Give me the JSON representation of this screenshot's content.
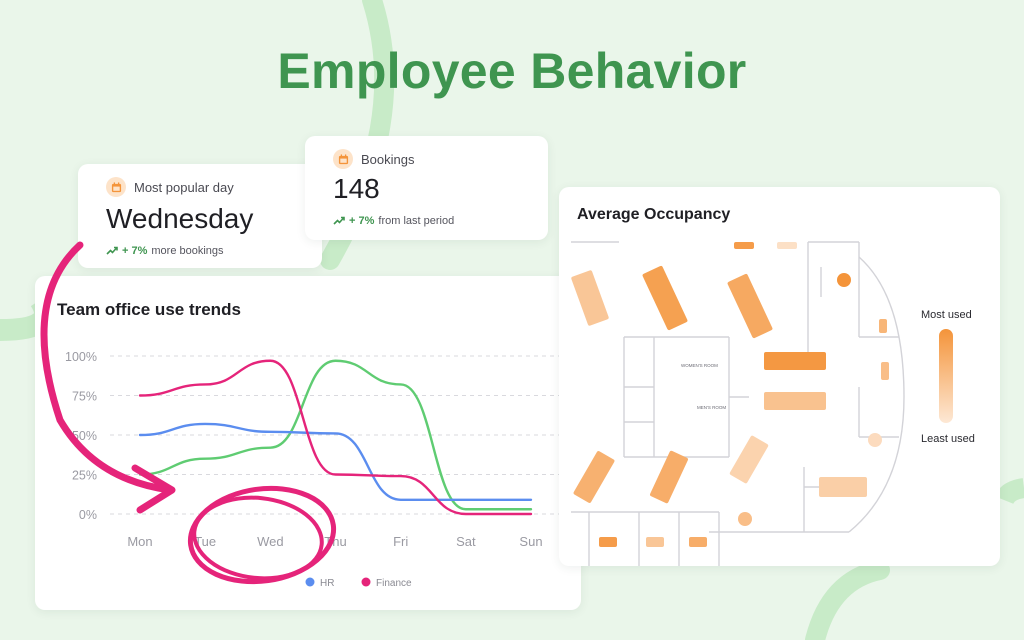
{
  "page": {
    "title": "Employee Behavior"
  },
  "popular_day": {
    "label": "Most popular day",
    "value": "Wednesday",
    "trend_pct": "+ 7%",
    "trend_text": "more bookings",
    "icon": "calendar-icon"
  },
  "bookings": {
    "label": "Bookings",
    "value": "148",
    "trend_pct": "+ 7%",
    "trend_text": "from last period",
    "icon": "calendar-icon"
  },
  "trends": {
    "title": "Team office use trends",
    "annotation": "hand-drawn pink circle around Tue/Wed with arrow from the Most popular day card"
  },
  "chart_data": {
    "type": "line",
    "title": "Team office use trends",
    "categories": [
      "Mon",
      "Tue",
      "Wed",
      "Thu",
      "Fri",
      "Sat",
      "Sun"
    ],
    "ytick_labels": [
      "100%",
      "75%",
      "50%",
      "25%",
      "0%"
    ],
    "ylim": [
      0,
      100
    ],
    "grid": true,
    "legend_placement": "bottom-center",
    "series": [
      {
        "name": "",
        "color": "#5fcc72",
        "values": [
          25,
          35,
          42,
          97,
          82,
          3,
          3
        ]
      },
      {
        "name": "HR",
        "color": "#5b8def",
        "values": [
          50,
          57,
          52,
          51,
          9,
          9,
          9
        ]
      },
      {
        "name": "Finance",
        "color": "#e5247a",
        "values": [
          75,
          82,
          97,
          25,
          24,
          0,
          0
        ]
      }
    ]
  },
  "occupancy": {
    "title": "Average Occupancy",
    "legend_most": "Most used",
    "legend_least": "Least used",
    "room_label_1": "WOMEN'S ROOM",
    "room_label_2": "MEN'S ROOM",
    "colors": {
      "most": "#f4943a",
      "least": "#fde8d5"
    }
  }
}
